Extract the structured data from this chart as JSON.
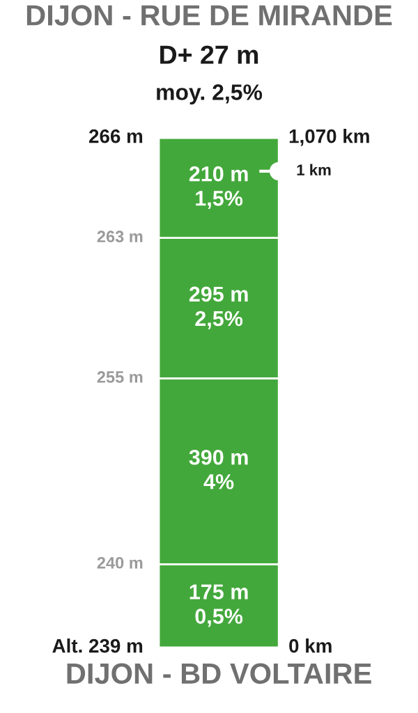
{
  "chart_data": {
    "type": "bar",
    "stacked": true,
    "title": "DIJON - RUE DE MIRANDE",
    "subtitle": "D+ 27 m",
    "annotations": [
      "moy. 2,5%",
      "Alt. 239 m",
      "240 m",
      "255 m",
      "263 m",
      "266 m",
      "1,070 km",
      "0 km"
    ],
    "xlabel": "DIJON - BD VOLTAIRE",
    "categories": [
      null
    ],
    "series": [
      {
        "color": "#43a83b",
        "values": [
          175
        ],
        "value_labels": [
          "175 m\n0,5%"
        ]
      },
      {
        "color": "#43a83b",
        "values": [
          390
        ],
        "value_labels": [
          "390 m\n4%"
        ]
      },
      {
        "color": "#43a83b",
        "values": [
          295
        ],
        "value_labels": [
          "295 m\n2,5%"
        ]
      },
      {
        "color": "#43a83b",
        "values": [
          210
        ],
        "value_labels": [
          "210 m\n1,5%"
        ]
      }
    ],
    "ylim": [
      0,
      1070
    ],
    "ref_lines": [
      {
        "axis": "y",
        "value": 1000,
        "label": "1 km",
        "color": "#ffffff"
      }
    ],
    "grid": false,
    "legend": false
  }
}
